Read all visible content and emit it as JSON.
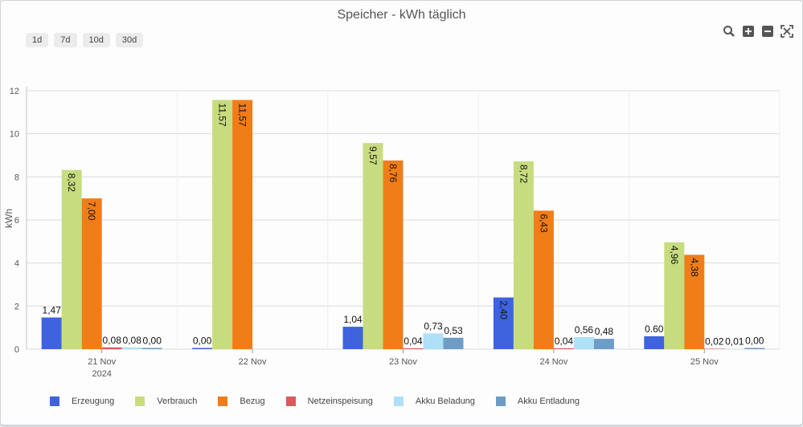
{
  "title": "Speicher - kWh täglich",
  "range_buttons": [
    "1d",
    "7d",
    "10d",
    "30d"
  ],
  "tools": [
    "zoom-icon",
    "plus-icon",
    "minus-icon",
    "fullscreen-icon"
  ],
  "chart_data": {
    "type": "bar",
    "ylabel": "kWh",
    "ylim": [
      0,
      12
    ],
    "yticks": [
      "0",
      "2",
      "4",
      "6",
      "8",
      "10",
      "12"
    ],
    "categories": [
      {
        "label": "21 Nov",
        "sub": "2024"
      },
      {
        "label": "22 Nov",
        "sub": ""
      },
      {
        "label": "23 Nov",
        "sub": ""
      },
      {
        "label": "24 Nov",
        "sub": ""
      },
      {
        "label": "25 Nov",
        "sub": ""
      }
    ],
    "series": [
      {
        "name": "Erzeugung",
        "color": "#3e63dd",
        "values": [
          1.47,
          0.0,
          1.04,
          2.4,
          0.6
        ],
        "labels": [
          "1,47",
          "0,00",
          "1,04",
          "2,40",
          "0.60"
        ]
      },
      {
        "name": "Verbrauch",
        "color": "#c7dc7e",
        "values": [
          8.32,
          11.57,
          9.57,
          8.72,
          4.96
        ],
        "labels": [
          "8,32",
          "11,57",
          "9,57",
          "8,72",
          "4,96"
        ]
      },
      {
        "name": "Bezug",
        "color": "#f07d18",
        "values": [
          7.0,
          11.57,
          8.76,
          6.43,
          4.38
        ],
        "labels": [
          "7,00",
          "11,57",
          "8,76",
          "6,43",
          "4,38"
        ]
      },
      {
        "name": "Netzeinspeisung",
        "color": "#d65b5b",
        "values": [
          0.08,
          null,
          0.04,
          0.04,
          0.02
        ],
        "labels": [
          "0,08",
          "",
          "0,04",
          "0,04",
          "0,02"
        ]
      },
      {
        "name": "Akku Beladung",
        "color": "#aee0f7",
        "values": [
          0.08,
          null,
          0.73,
          0.56,
          0.01
        ],
        "labels": [
          "0,08",
          "",
          "0,73",
          "0,56",
          "0,01"
        ]
      },
      {
        "name": "Akku Entladung",
        "color": "#6d9dc6",
        "values": [
          0.0,
          null,
          0.53,
          0.48,
          0.0
        ],
        "labels": [
          "0,00",
          "",
          "0,53",
          "0,48",
          "0,00"
        ]
      }
    ]
  }
}
